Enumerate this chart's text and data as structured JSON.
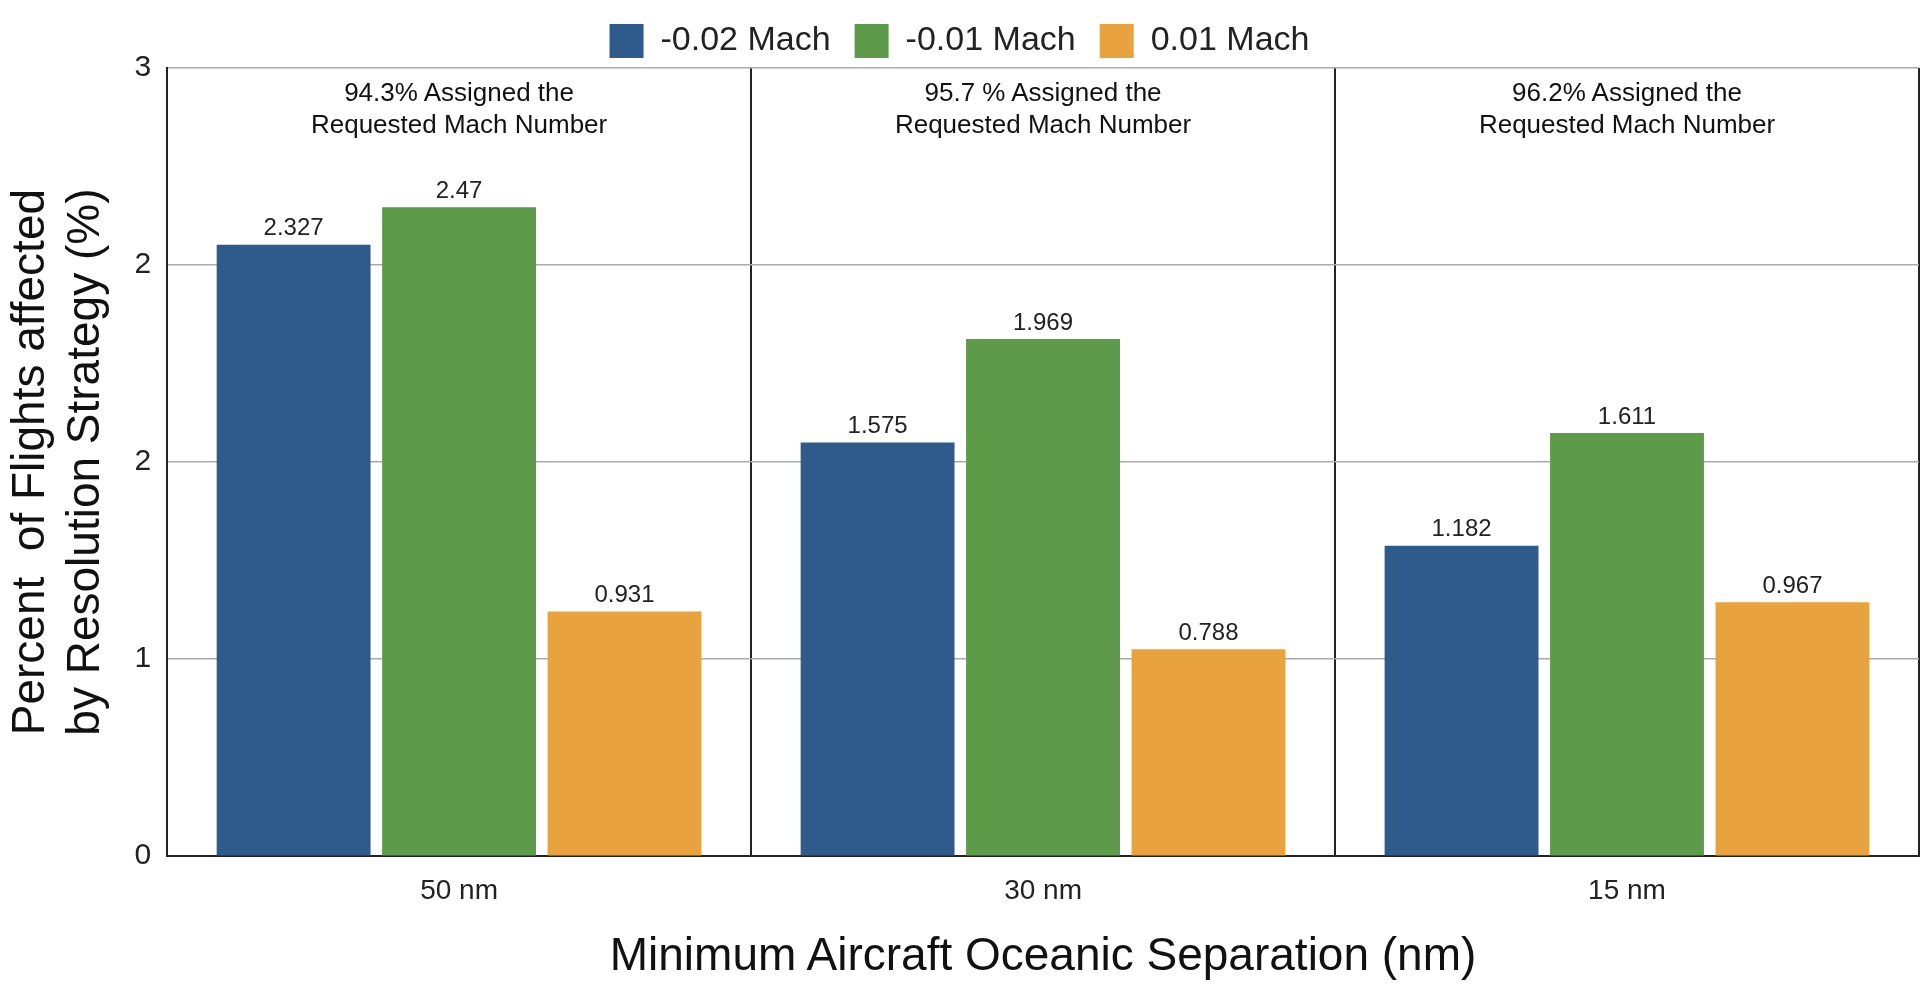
{
  "chart_data": {
    "type": "bar",
    "xlabel": "Minimum Aircraft Oceanic Separation (nm)",
    "ylabel": "Percent  of Flights affected by Resolution Strategy (%)",
    "categories": [
      "50 nm",
      "30 nm",
      "15 nm"
    ],
    "series": [
      {
        "name": "-0.02 Mach",
        "color": "#2e5a8c",
        "values": [
          2.327,
          1.575,
          1.182
        ]
      },
      {
        "name": "-0.01 Mach",
        "color": "#5d9a4a",
        "values": [
          2.47,
          1.969,
          1.611
        ]
      },
      {
        "name": "0.01 Mach",
        "color": "#e8a23e",
        "values": [
          0.931,
          0.788,
          0.967
        ]
      }
    ],
    "ylim": [
      0,
      3
    ],
    "yticks": [
      0,
      {
        "value": 0.75,
        "label": "1"
      },
      {
        "value": 1.5,
        "label": "2"
      },
      {
        "value": 2.25,
        "label": "2"
      },
      3
    ],
    "grid": true,
    "legend": "top",
    "data_labels": true,
    "annotations": [
      "94.3% Assigned the Requested Mach Number",
      "95.7 % Assigned the Requested Mach Number",
      "96.2% Assigned the Requested Mach Number"
    ]
  }
}
